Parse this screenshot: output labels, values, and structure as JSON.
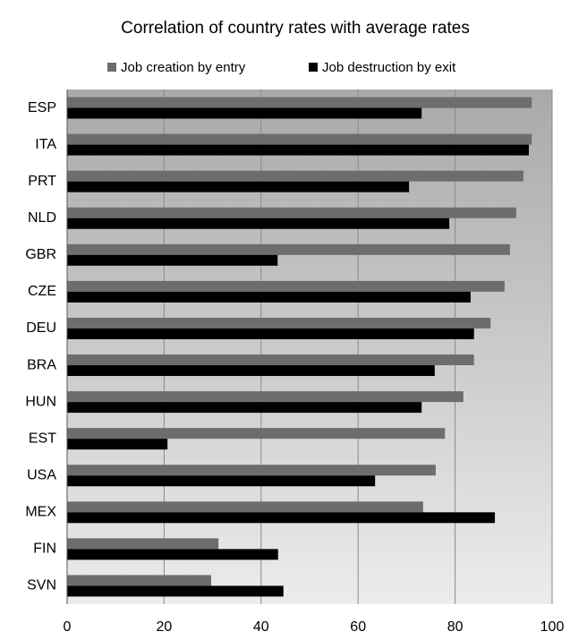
{
  "chart_data": {
    "type": "barh",
    "title": "Correlation of country rates with average rates",
    "categories": [
      "ESP",
      "ITA",
      "PRT",
      "NLD",
      "GBR",
      "CZE",
      "DEU",
      "BRA",
      "HUN",
      "EST",
      "USA",
      "MEX",
      "FIN",
      "SVN"
    ],
    "series": [
      {
        "name": "Job creation by entry",
        "color": "#6d6d6d",
        "values": [
          95.8,
          95.8,
          94.1,
          92.6,
          91.3,
          90.2,
          87.3,
          83.9,
          81.7,
          77.9,
          76.0,
          73.4,
          31.2,
          29.7
        ]
      },
      {
        "name": "Job destruction by exit",
        "color": "#000000",
        "values": [
          73.1,
          95.2,
          70.5,
          78.8,
          43.4,
          83.2,
          83.9,
          75.8,
          73.1,
          20.7,
          63.5,
          88.2,
          43.5,
          44.6
        ]
      }
    ],
    "xlim": [
      0,
      100
    ],
    "xticks": [
      0,
      20,
      40,
      60,
      80,
      100
    ],
    "grid": true
  }
}
